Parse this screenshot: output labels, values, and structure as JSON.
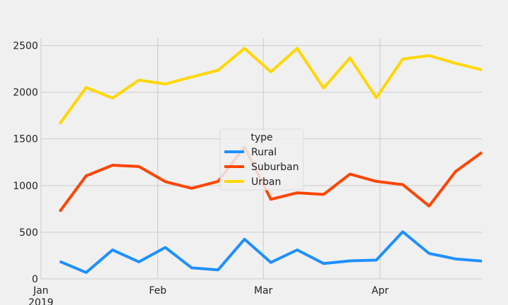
{
  "chart_data": {
    "type": "line",
    "x": [
      "2019-01-06",
      "2019-01-13",
      "2019-01-20",
      "2019-01-27",
      "2019-02-03",
      "2019-02-10",
      "2019-02-17",
      "2019-02-24",
      "2019-03-03",
      "2019-03-10",
      "2019-03-17",
      "2019-03-24",
      "2019-03-31",
      "2019-04-07",
      "2019-04-14",
      "2019-04-21",
      "2019-04-28"
    ],
    "series": [
      {
        "name": "Rural",
        "color": "#1e90ff",
        "values": [
          187,
          68,
          310,
          182,
          337,
          118,
          97,
          425,
          176,
          310,
          165,
          193,
          201,
          505,
          272,
          214,
          191
        ]
      },
      {
        "name": "Suburban",
        "color": "#ff4500",
        "values": [
          722,
          1105,
          1218,
          1204,
          1042,
          971,
          1045,
          1414,
          853,
          922,
          905,
          1123,
          1045,
          1010,
          781,
          1150,
          1355
        ]
      },
      {
        "name": "Urban",
        "color": "#ffd700",
        "values": [
          1662,
          2051,
          1937,
          2130,
          2088,
          2164,
          2236,
          2470,
          2218,
          2470,
          2045,
          2368,
          1941,
          2356,
          2393,
          2310,
          2240
        ]
      }
    ],
    "xticks": [
      {
        "date": "2019-01-01",
        "label": "Jan",
        "sublabel": "2019"
      },
      {
        "date": "2019-02-01",
        "label": "Feb",
        "sublabel": ""
      },
      {
        "date": "2019-03-01",
        "label": "Mar",
        "sublabel": ""
      },
      {
        "date": "2019-04-01",
        "label": "Apr",
        "sublabel": ""
      }
    ],
    "xlim": [
      "2019-01-01",
      "2019-04-28"
    ],
    "yticks": [
      0,
      500,
      1000,
      1500,
      2000,
      2500
    ],
    "ylim": [
      0,
      2580
    ],
    "grid": true,
    "legend": {
      "title": "type",
      "placement": "center"
    },
    "background": "#f0f0f0",
    "grid_color": "#cbcbcb"
  }
}
